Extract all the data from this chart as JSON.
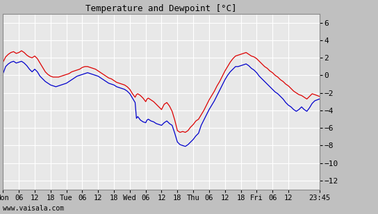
{
  "title": "Temperature and Dewpoint [°C]",
  "xlabel_bottom": "www.vaisala.com",
  "yticks": [
    -12,
    -10,
    -8,
    -6,
    -4,
    -2,
    0,
    2,
    4,
    6
  ],
  "ylim": [
    -13.0,
    7.0
  ],
  "bg_color": "#c0c0c0",
  "plot_bg_color": "#e8e8e8",
  "grid_color": "#ffffff",
  "temp_color": "#dd0000",
  "dew_color": "#0000cc",
  "line_width": 0.9,
  "xtick_labels": [
    "Mon",
    "06",
    "12",
    "18",
    "Tue",
    "06",
    "12",
    "18",
    "Wed",
    "06",
    "12",
    "18",
    "Thu",
    "06",
    "12",
    "18",
    "Fri",
    "06",
    "12",
    "23:45"
  ],
  "xtick_positions": [
    0,
    6,
    12,
    18,
    24,
    30,
    36,
    42,
    48,
    54,
    60,
    66,
    72,
    78,
    84,
    90,
    96,
    102,
    108,
    119.75
  ],
  "total_hours": 119.75,
  "temp_data": [
    [
      0,
      1.5
    ],
    [
      0.5,
      1.8
    ],
    [
      1,
      2.1
    ],
    [
      2,
      2.4
    ],
    [
      3,
      2.6
    ],
    [
      4,
      2.7
    ],
    [
      5,
      2.5
    ],
    [
      6,
      2.6
    ],
    [
      7,
      2.8
    ],
    [
      8,
      2.6
    ],
    [
      9,
      2.3
    ],
    [
      10,
      2.1
    ],
    [
      11,
      2.0
    ],
    [
      12,
      2.2
    ],
    [
      13,
      1.9
    ],
    [
      14,
      1.4
    ],
    [
      15,
      0.9
    ],
    [
      16,
      0.4
    ],
    [
      17,
      0.1
    ],
    [
      18,
      -0.1
    ],
    [
      19,
      -0.2
    ],
    [
      20,
      -0.2
    ],
    [
      21,
      -0.2
    ],
    [
      22,
      -0.1
    ],
    [
      23,
      0.0
    ],
    [
      24,
      0.1
    ],
    [
      25,
      0.2
    ],
    [
      26,
      0.4
    ],
    [
      27,
      0.5
    ],
    [
      28,
      0.6
    ],
    [
      29,
      0.7
    ],
    [
      30,
      0.9
    ],
    [
      31,
      1.0
    ],
    [
      32,
      1.0
    ],
    [
      33,
      0.9
    ],
    [
      34,
      0.8
    ],
    [
      35,
      0.7
    ],
    [
      36,
      0.5
    ],
    [
      37,
      0.3
    ],
    [
      38,
      0.1
    ],
    [
      39,
      -0.1
    ],
    [
      40,
      -0.3
    ],
    [
      41,
      -0.4
    ],
    [
      42,
      -0.6
    ],
    [
      43,
      -0.8
    ],
    [
      44,
      -0.9
    ],
    [
      45,
      -1.0
    ],
    [
      46,
      -1.1
    ],
    [
      47,
      -1.3
    ],
    [
      48,
      -1.6
    ],
    [
      49,
      -2.1
    ],
    [
      50,
      -2.5
    ],
    [
      50.5,
      -2.2
    ],
    [
      51,
      -2.1
    ],
    [
      52,
      -2.3
    ],
    [
      53,
      -2.6
    ],
    [
      54,
      -3.0
    ],
    [
      54.5,
      -2.7
    ],
    [
      55,
      -2.6
    ],
    [
      56,
      -2.8
    ],
    [
      57,
      -3.0
    ],
    [
      58,
      -3.3
    ],
    [
      59,
      -3.6
    ],
    [
      60,
      -3.9
    ],
    [
      61,
      -3.3
    ],
    [
      62,
      -3.1
    ],
    [
      63,
      -3.5
    ],
    [
      64,
      -4.1
    ],
    [
      65,
      -5.1
    ],
    [
      66,
      -6.3
    ],
    [
      67,
      -6.5
    ],
    [
      68,
      -6.4
    ],
    [
      69,
      -6.5
    ],
    [
      70,
      -6.3
    ],
    [
      71,
      -5.9
    ],
    [
      72,
      -5.6
    ],
    [
      73,
      -5.2
    ],
    [
      74,
      -5.0
    ],
    [
      75,
      -4.5
    ],
    [
      76,
      -4.0
    ],
    [
      77,
      -3.4
    ],
    [
      78,
      -2.8
    ],
    [
      79,
      -2.3
    ],
    [
      80,
      -1.8
    ],
    [
      81,
      -1.2
    ],
    [
      82,
      -0.7
    ],
    [
      83,
      -0.1
    ],
    [
      84,
      0.5
    ],
    [
      85,
      1.0
    ],
    [
      86,
      1.5
    ],
    [
      87,
      1.9
    ],
    [
      88,
      2.2
    ],
    [
      89,
      2.3
    ],
    [
      90,
      2.4
    ],
    [
      91,
      2.5
    ],
    [
      92,
      2.6
    ],
    [
      93,
      2.4
    ],
    [
      94,
      2.2
    ],
    [
      95,
      2.1
    ],
    [
      96,
      1.9
    ],
    [
      97,
      1.6
    ],
    [
      98,
      1.3
    ],
    [
      99,
      1.0
    ],
    [
      100,
      0.8
    ],
    [
      101,
      0.5
    ],
    [
      102,
      0.3
    ],
    [
      103,
      0.0
    ],
    [
      104,
      -0.2
    ],
    [
      105,
      -0.5
    ],
    [
      106,
      -0.7
    ],
    [
      107,
      -1.0
    ],
    [
      108,
      -1.2
    ],
    [
      109,
      -1.5
    ],
    [
      110,
      -1.8
    ],
    [
      111,
      -2.0
    ],
    [
      112,
      -2.2
    ],
    [
      113,
      -2.3
    ],
    [
      114,
      -2.5
    ],
    [
      115,
      -2.7
    ],
    [
      116,
      -2.4
    ],
    [
      117,
      -2.1
    ],
    [
      118,
      -2.2
    ],
    [
      119.75,
      -2.4
    ]
  ],
  "dew_data": [
    [
      0,
      0.2
    ],
    [
      0.5,
      0.6
    ],
    [
      1,
      1.0
    ],
    [
      2,
      1.3
    ],
    [
      3,
      1.5
    ],
    [
      4,
      1.6
    ],
    [
      5,
      1.4
    ],
    [
      6,
      1.5
    ],
    [
      7,
      1.6
    ],
    [
      8,
      1.4
    ],
    [
      9,
      1.1
    ],
    [
      10,
      0.7
    ],
    [
      11,
      0.4
    ],
    [
      12,
      0.7
    ],
    [
      13,
      0.4
    ],
    [
      14,
      -0.1
    ],
    [
      15,
      -0.4
    ],
    [
      16,
      -0.7
    ],
    [
      17,
      -0.9
    ],
    [
      18,
      -1.1
    ],
    [
      19,
      -1.2
    ],
    [
      20,
      -1.3
    ],
    [
      21,
      -1.2
    ],
    [
      22,
      -1.1
    ],
    [
      23,
      -1.0
    ],
    [
      24,
      -0.9
    ],
    [
      25,
      -0.7
    ],
    [
      26,
      -0.5
    ],
    [
      27,
      -0.3
    ],
    [
      28,
      -0.1
    ],
    [
      29,
      0.0
    ],
    [
      30,
      0.1
    ],
    [
      31,
      0.2
    ],
    [
      32,
      0.3
    ],
    [
      33,
      0.2
    ],
    [
      34,
      0.1
    ],
    [
      35,
      0.0
    ],
    [
      36,
      -0.1
    ],
    [
      37,
      -0.3
    ],
    [
      38,
      -0.5
    ],
    [
      39,
      -0.7
    ],
    [
      40,
      -0.9
    ],
    [
      41,
      -1.0
    ],
    [
      42,
      -1.1
    ],
    [
      43,
      -1.3
    ],
    [
      44,
      -1.4
    ],
    [
      45,
      -1.5
    ],
    [
      46,
      -1.6
    ],
    [
      47,
      -1.8
    ],
    [
      48,
      -2.1
    ],
    [
      49,
      -2.6
    ],
    [
      50,
      -3.1
    ],
    [
      50.5,
      -4.9
    ],
    [
      51,
      -4.7
    ],
    [
      52,
      -5.1
    ],
    [
      53,
      -5.3
    ],
    [
      54,
      -5.4
    ],
    [
      54.5,
      -5.1
    ],
    [
      55,
      -5.0
    ],
    [
      56,
      -5.2
    ],
    [
      57,
      -5.3
    ],
    [
      58,
      -5.5
    ],
    [
      59,
      -5.6
    ],
    [
      60,
      -5.7
    ],
    [
      61,
      -5.4
    ],
    [
      62,
      -5.2
    ],
    [
      63,
      -5.5
    ],
    [
      64,
      -5.7
    ],
    [
      65,
      -6.6
    ],
    [
      66,
      -7.6
    ],
    [
      67,
      -7.9
    ],
    [
      68,
      -8.0
    ],
    [
      69,
      -8.1
    ],
    [
      70,
      -7.9
    ],
    [
      71,
      -7.6
    ],
    [
      72,
      -7.3
    ],
    [
      73,
      -6.9
    ],
    [
      74,
      -6.6
    ],
    [
      75,
      -5.7
    ],
    [
      76,
      -5.1
    ],
    [
      77,
      -4.5
    ],
    [
      78,
      -3.9
    ],
    [
      79,
      -3.4
    ],
    [
      80,
      -2.9
    ],
    [
      81,
      -2.3
    ],
    [
      82,
      -1.7
    ],
    [
      83,
      -1.1
    ],
    [
      84,
      -0.5
    ],
    [
      85,
      0.0
    ],
    [
      86,
      0.4
    ],
    [
      87,
      0.7
    ],
    [
      88,
      1.0
    ],
    [
      89,
      1.0
    ],
    [
      90,
      1.1
    ],
    [
      91,
      1.2
    ],
    [
      92,
      1.3
    ],
    [
      93,
      1.1
    ],
    [
      94,
      0.8
    ],
    [
      95,
      0.6
    ],
    [
      96,
      0.3
    ],
    [
      97,
      -0.1
    ],
    [
      98,
      -0.4
    ],
    [
      99,
      -0.7
    ],
    [
      100,
      -1.0
    ],
    [
      101,
      -1.3
    ],
    [
      102,
      -1.6
    ],
    [
      103,
      -1.9
    ],
    [
      104,
      -2.1
    ],
    [
      105,
      -2.4
    ],
    [
      106,
      -2.7
    ],
    [
      107,
      -3.1
    ],
    [
      108,
      -3.4
    ],
    [
      109,
      -3.6
    ],
    [
      110,
      -3.9
    ],
    [
      111,
      -4.1
    ],
    [
      112,
      -3.9
    ],
    [
      113,
      -3.6
    ],
    [
      114,
      -3.9
    ],
    [
      115,
      -4.1
    ],
    [
      116,
      -3.7
    ],
    [
      117,
      -3.2
    ],
    [
      118,
      -2.9
    ],
    [
      119.75,
      -2.7
    ]
  ]
}
